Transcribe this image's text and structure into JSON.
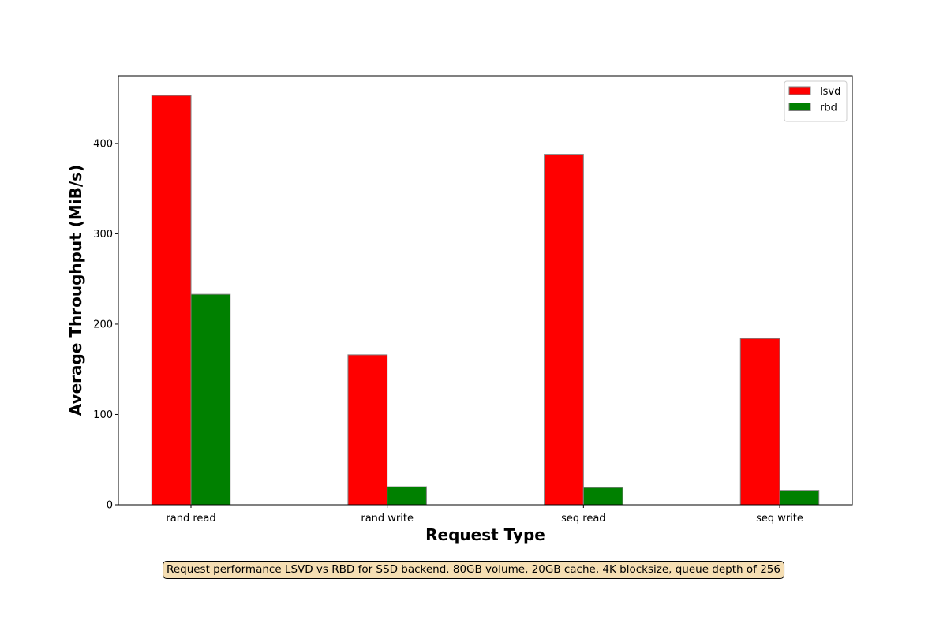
{
  "chart_data": {
    "type": "bar",
    "categories": [
      "rand read",
      "rand write",
      "seq read",
      "seq write"
    ],
    "series": [
      {
        "name": "lsvd",
        "color": "#ff0000",
        "values": [
          453,
          166,
          388,
          184
        ]
      },
      {
        "name": "rbd",
        "color": "#008000",
        "values": [
          233,
          20,
          19,
          16
        ]
      }
    ],
    "xlabel": "Request Type",
    "ylabel": "Average Throughput (MiB/s)",
    "ylim": [
      0,
      475
    ],
    "yticks": [
      0,
      100,
      200,
      300,
      400
    ],
    "grid": false,
    "legend_position": "top-right",
    "caption": "Request performance LSVD vs RBD for SSD backend. 80GB volume, 20GB cache, 4K blocksize, queue depth of 256"
  }
}
